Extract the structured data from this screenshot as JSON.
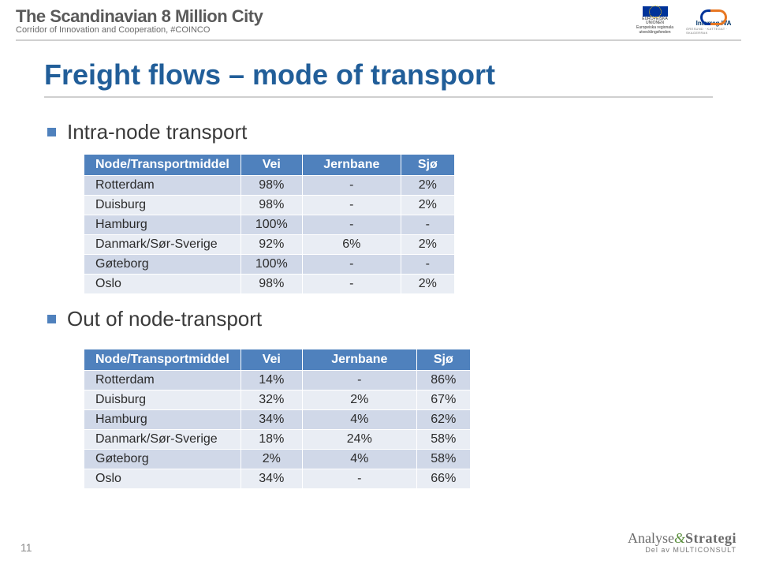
{
  "header": {
    "main_title": "The Scandinavian 8 Million City",
    "subtitle": "Corridor of Innovation and Cooperation, #COINCO",
    "eu_label_1": "EUROPEISKA UNIONEN",
    "eu_label_2": "Europeiska regionala",
    "eu_label_3": "utvecklingsfonden",
    "interreg_label": "Interreg IVA",
    "interreg_sub": "ÖRESUND · KATTEGAT · SKAGERRAK"
  },
  "slide": {
    "title": "Freight flows – mode of transport",
    "bullet1": "Intra-node transport",
    "bullet2": "Out of node-transport"
  },
  "table1": {
    "columns": [
      "Node/Transportmiddel",
      "Vei",
      "Jernbane",
      "Sjø"
    ],
    "rows": [
      [
        "Rotterdam",
        "98%",
        "-",
        "2%"
      ],
      [
        "Duisburg",
        "98%",
        "-",
        "2%"
      ],
      [
        "Hamburg",
        "100%",
        "-",
        "-"
      ],
      [
        "Danmark/Sør-Sverige",
        "92%",
        "6%",
        "2%"
      ],
      [
        "Gøteborg",
        "100%",
        "-",
        "-"
      ],
      [
        "Oslo",
        "98%",
        "-",
        "2%"
      ]
    ],
    "header_bg": "#4f81bd",
    "band_a": "#d0d8e8",
    "band_b": "#e9edf4"
  },
  "table2": {
    "columns": [
      "Node/Transportmiddel",
      "Vei",
      "Jernbane",
      "Sjø"
    ],
    "rows": [
      [
        "Rotterdam",
        "14%",
        "-",
        "86%"
      ],
      [
        "Duisburg",
        "32%",
        "2%",
        "67%"
      ],
      [
        "Hamburg",
        "34%",
        "4%",
        "62%"
      ],
      [
        "Danmark/Sør-Sverige",
        "18%",
        "24%",
        "58%"
      ],
      [
        "Gøteborg",
        "2%",
        "4%",
        "58%"
      ],
      [
        "Oslo",
        "34%",
        "-",
        "66%"
      ]
    ]
  },
  "footer": {
    "page": "11",
    "logo_top_1": "Analyse",
    "logo_amp": "&",
    "logo_top_2": "Strategi",
    "logo_sub": "Del av MULTICONSULT"
  },
  "colors": {
    "title_color": "#215e99",
    "bullet_color": "#4f81bd"
  }
}
